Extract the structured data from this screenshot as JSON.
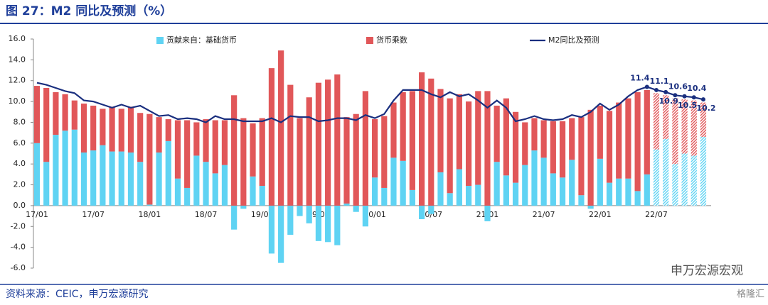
{
  "chart_data": {
    "type": "bar",
    "title": "图 27：M2 同比及预测（%）",
    "source": "资料来源：CEIC，申万宏源研究",
    "watermark": "申万宏源宏观",
    "watermark2": "格隆汇",
    "categories": [
      "17/01",
      null,
      null,
      null,
      null,
      null,
      "17/07",
      null,
      null,
      null,
      null,
      null,
      "18/01",
      null,
      null,
      null,
      null,
      null,
      "18/07",
      null,
      null,
      null,
      null,
      null,
      "19/01",
      null,
      null,
      null,
      null,
      null,
      "19/07",
      null,
      null,
      null,
      null,
      null,
      "20/01",
      null,
      null,
      null,
      null,
      null,
      "20/07",
      null,
      null,
      null,
      null,
      null,
      "21/01",
      null,
      null,
      null,
      null,
      null,
      "21/07",
      null,
      null,
      null,
      null,
      null,
      "22/01",
      null,
      null,
      null,
      null,
      null,
      "22/07",
      null,
      null,
      null,
      null,
      null
    ],
    "hatched_from": "22/07",
    "markers_from": 65,
    "series": [
      {
        "name": "贡献来自：基础货币",
        "type": "bar",
        "color": "#5fd3f3",
        "values": [
          6.0,
          4.2,
          6.8,
          7.2,
          7.3,
          5.1,
          5.3,
          5.8,
          5.2,
          5.2,
          5.1,
          4.2,
          0.1,
          5.1,
          6.2,
          2.6,
          1.7,
          4.8,
          4.2,
          3.1,
          3.9,
          -2.3,
          -0.3,
          2.8,
          1.9,
          -4.6,
          -5.5,
          -2.8,
          -1.0,
          -1.7,
          -3.4,
          -3.5,
          -3.8,
          0.2,
          -0.6,
          -2.0,
          2.7,
          1.7,
          4.6,
          4.3,
          1.5,
          -1.3,
          -0.8,
          3.2,
          1.2,
          3.5,
          1.9,
          2.0,
          -1.5,
          4.2,
          2.9,
          2.2,
          3.9,
          5.3,
          4.6,
          3.1,
          2.7,
          4.4,
          1.0,
          -0.3,
          4.5,
          2.2,
          2.6,
          2.6,
          1.4,
          3.0,
          5.4,
          6.4,
          4.0,
          5.0,
          4.8,
          6.6
        ]
      },
      {
        "name": "货币乘数",
        "type": "bar",
        "color": "#e15759",
        "values": [
          5.5,
          7.1,
          4.1,
          3.5,
          2.8,
          4.7,
          4.3,
          3.5,
          4.3,
          4.1,
          4.4,
          4.7,
          8.7,
          3.4,
          2.1,
          5.6,
          6.5,
          3.2,
          4.1,
          5.1,
          4.3,
          10.6,
          8.4,
          5.1,
          6.5,
          13.2,
          14.9,
          11.6,
          8.4,
          10.4,
          11.8,
          12.1,
          12.6,
          8.3,
          8.8,
          11.0,
          5.6,
          6.9,
          5.3,
          6.6,
          9.5,
          12.8,
          12.2,
          8.0,
          9.1,
          7.2,
          8.1,
          9.0,
          11.0,
          5.4,
          7.4,
          6.8,
          4.1,
          3.1,
          3.6,
          5.0,
          5.4,
          4.0,
          7.5,
          9.2,
          5.1,
          6.9,
          7.3,
          7.7,
          9.5,
          8.1,
          5.4,
          4.2,
          6.3,
          5.2,
          5.3,
          3.3
        ]
      },
      {
        "name": "M2同比及预测",
        "type": "line",
        "color": "#1a2f7f",
        "values": [
          11.8,
          11.6,
          11.3,
          11.0,
          10.8,
          10.1,
          10.0,
          9.7,
          9.4,
          9.7,
          9.4,
          9.6,
          9.1,
          8.6,
          8.7,
          8.3,
          8.4,
          8.3,
          8.0,
          8.6,
          8.3,
          8.3,
          8.1,
          8.1,
          8.1,
          8.4,
          8.0,
          8.6,
          8.5,
          8.5,
          8.1,
          8.2,
          8.4,
          8.4,
          8.2,
          8.7,
          8.4,
          8.8,
          10.1,
          11.1,
          11.1,
          11.1,
          10.7,
          10.4,
          10.9,
          10.5,
          10.7,
          10.1,
          9.4,
          10.1,
          9.4,
          8.1,
          8.3,
          8.6,
          8.3,
          8.2,
          8.3,
          8.7,
          8.5,
          9.0,
          9.8,
          9.2,
          9.7,
          10.5,
          11.1,
          11.4,
          11.1,
          10.9,
          10.6,
          10.5,
          10.4,
          10.2
        ]
      }
    ],
    "ylim": [
      -6,
      16
    ],
    "yticks": [
      {
        "value": -6,
        "label": "-6.0"
      },
      {
        "value": -4,
        "label": "-4.0"
      },
      {
        "value": -2,
        "label": "-2.0"
      },
      {
        "value": 0,
        "label": "0.0"
      },
      {
        "value": 2,
        "label": "2.0"
      },
      {
        "value": 4,
        "label": "4.0"
      },
      {
        "value": 6,
        "label": "6.0"
      },
      {
        "value": 8,
        "label": "8.0"
      },
      {
        "value": 10,
        "label": "10.0"
      },
      {
        "value": 12,
        "label": "12.0"
      },
      {
        "value": 14,
        "label": "14.0"
      },
      {
        "value": 16,
        "label": "16.0"
      }
    ]
  }
}
